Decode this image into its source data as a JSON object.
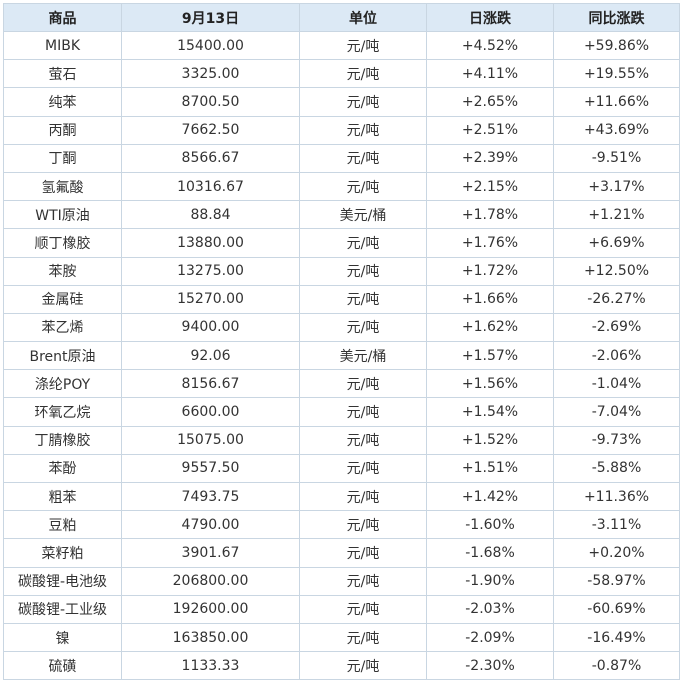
{
  "colors": {
    "header_bg": "#dce9f5",
    "border": "#c9d6e2",
    "up": "#e8151b",
    "down": "#2a8a2a"
  },
  "headers": [
    "商品",
    "9月13日",
    "单位",
    "日涨跌",
    "同比涨跌"
  ],
  "rows": [
    {
      "name": "MIBK",
      "price": "15400.00",
      "unit": "元/吨",
      "day": "+4.52%",
      "yoy": "+59.86%"
    },
    {
      "name": "萤石",
      "price": "3325.00",
      "unit": "元/吨",
      "day": "+4.11%",
      "yoy": "+19.55%"
    },
    {
      "name": "纯苯",
      "price": "8700.50",
      "unit": "元/吨",
      "day": "+2.65%",
      "yoy": "+11.66%"
    },
    {
      "name": "丙酮",
      "price": "7662.50",
      "unit": "元/吨",
      "day": "+2.51%",
      "yoy": "+43.69%"
    },
    {
      "name": "丁酮",
      "price": "8566.67",
      "unit": "元/吨",
      "day": "+2.39%",
      "yoy": "-9.51%"
    },
    {
      "name": "氢氟酸",
      "price": "10316.67",
      "unit": "元/吨",
      "day": "+2.15%",
      "yoy": "+3.17%"
    },
    {
      "name": "WTI原油",
      "price": "88.84",
      "unit": "美元/桶",
      "day": "+1.78%",
      "yoy": "+1.21%"
    },
    {
      "name": "顺丁橡胶",
      "price": "13880.00",
      "unit": "元/吨",
      "day": "+1.76%",
      "yoy": "+6.69%"
    },
    {
      "name": "苯胺",
      "price": "13275.00",
      "unit": "元/吨",
      "day": "+1.72%",
      "yoy": "+12.50%"
    },
    {
      "name": "金属硅",
      "price": "15270.00",
      "unit": "元/吨",
      "day": "+1.66%",
      "yoy": "-26.27%"
    },
    {
      "name": "苯乙烯",
      "price": "9400.00",
      "unit": "元/吨",
      "day": "+1.62%",
      "yoy": "-2.69%"
    },
    {
      "name": "Brent原油",
      "price": "92.06",
      "unit": "美元/桶",
      "day": "+1.57%",
      "yoy": "-2.06%"
    },
    {
      "name": "涤纶POY",
      "price": "8156.67",
      "unit": "元/吨",
      "day": "+1.56%",
      "yoy": "-1.04%"
    },
    {
      "name": "环氧乙烷",
      "price": "6600.00",
      "unit": "元/吨",
      "day": "+1.54%",
      "yoy": "-7.04%"
    },
    {
      "name": "丁腈橡胶",
      "price": "15075.00",
      "unit": "元/吨",
      "day": "+1.52%",
      "yoy": "-9.73%"
    },
    {
      "name": "苯酚",
      "price": "9557.50",
      "unit": "元/吨",
      "day": "+1.51%",
      "yoy": "-5.88%"
    },
    {
      "name": "粗苯",
      "price": "7493.75",
      "unit": "元/吨",
      "day": "+1.42%",
      "yoy": "+11.36%"
    },
    {
      "name": "豆粕",
      "price": "4790.00",
      "unit": "元/吨",
      "day": "-1.60%",
      "yoy": "-3.11%"
    },
    {
      "name": "菜籽粕",
      "price": "3901.67",
      "unit": "元/吨",
      "day": "-1.68%",
      "yoy": "+0.20%"
    },
    {
      "name": "碳酸锂-电池级",
      "price": "206800.00",
      "unit": "元/吨",
      "day": "-1.90%",
      "yoy": "-58.97%"
    },
    {
      "name": "碳酸锂-工业级",
      "price": "192600.00",
      "unit": "元/吨",
      "day": "-2.03%",
      "yoy": "-60.69%"
    },
    {
      "name": "镍",
      "price": "163850.00",
      "unit": "元/吨",
      "day": "-2.09%",
      "yoy": "-16.49%"
    },
    {
      "name": "硫磺",
      "price": "1133.33",
      "unit": "元/吨",
      "day": "-2.30%",
      "yoy": "-0.87%"
    }
  ]
}
